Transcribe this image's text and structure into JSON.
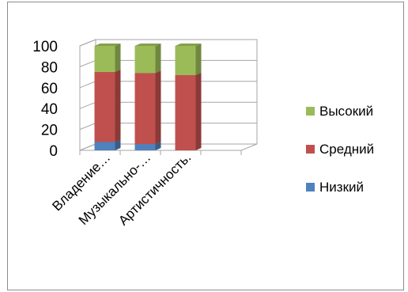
{
  "chart_data": {
    "type": "bar",
    "stacked": true,
    "three_d": true,
    "categories": [
      "Владение…",
      "Музыкально-…",
      "Артистичность."
    ],
    "series": [
      {
        "name": "Низкий",
        "values": [
          8,
          6,
          0
        ],
        "color": "#4f81bd"
      },
      {
        "name": "Средний",
        "values": [
          67,
          68,
          72
        ],
        "color": "#c0504d"
      },
      {
        "name": "Высокий",
        "values": [
          25,
          26,
          28
        ],
        "color": "#9bbb59"
      }
    ],
    "y_ticks": [
      "0",
      "20",
      "40",
      "60",
      "80",
      "100"
    ],
    "ylim": [
      0,
      100
    ],
    "grid": true,
    "legend_position": "right"
  }
}
